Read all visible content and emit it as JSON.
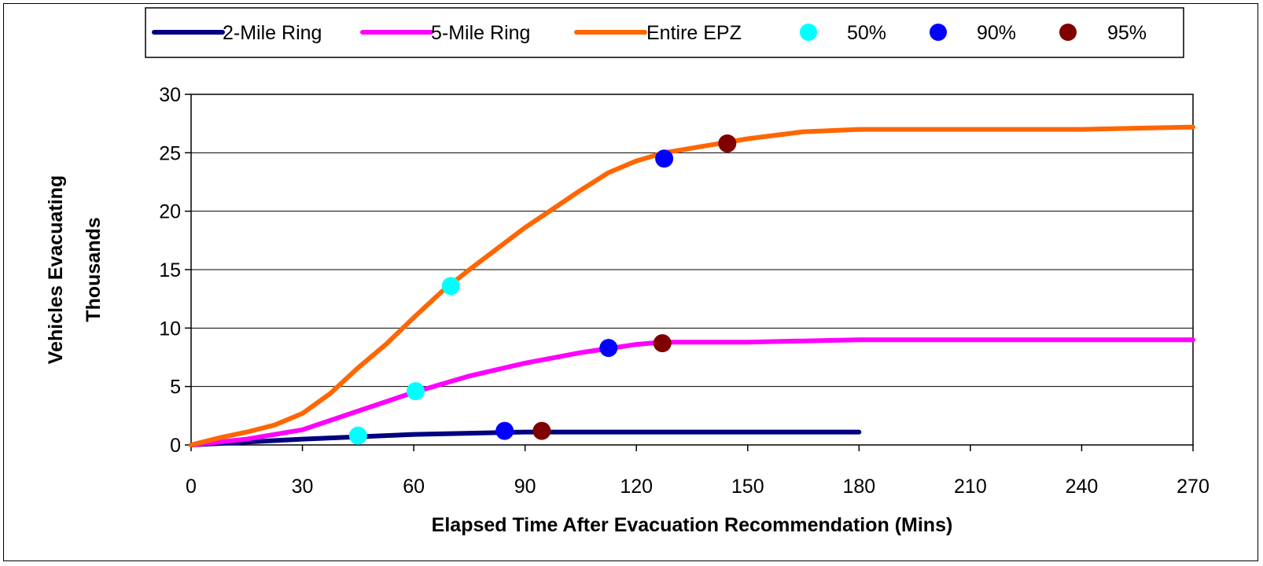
{
  "chart_data": {
    "type": "line",
    "xlabel": "Elapsed Time After Evacuation Recommendation (Mins)",
    "ylabel_line1": "Vehicles Evacuating",
    "ylabel_line2": "Thousands",
    "xlim": [
      0,
      270
    ],
    "ylim": [
      0,
      30
    ],
    "x_ticks": [
      "0",
      "30",
      "60",
      "90",
      "120",
      "150",
      "180",
      "210",
      "240",
      "270"
    ],
    "y_ticks": [
      "0",
      "5",
      "10",
      "15",
      "20",
      "25",
      "30"
    ],
    "grid": "horizontal",
    "legend_position": "top",
    "series": [
      {
        "name": "2-Mile Ring",
        "color": "#000080",
        "x": [
          0,
          15,
          30,
          45,
          60,
          75,
          90,
          105,
          120,
          135,
          150,
          165,
          180
        ],
        "y": [
          0,
          0.25,
          0.5,
          0.7,
          0.9,
          1.0,
          1.1,
          1.1,
          1.1,
          1.1,
          1.1,
          1.1,
          1.1
        ]
      },
      {
        "name": "5-Mile Ring",
        "color": "#ff00ff",
        "x": [
          0,
          15,
          30,
          45,
          60,
          75,
          90,
          105,
          120,
          127,
          150,
          180,
          210,
          240,
          270
        ],
        "y": [
          0,
          0.5,
          1.3,
          2.9,
          4.5,
          5.9,
          7.0,
          7.9,
          8.6,
          8.8,
          8.8,
          9.0,
          9.0,
          9.0,
          9.0
        ]
      },
      {
        "name": "Entire EPZ",
        "color": "#ff6600",
        "x": [
          0,
          7.5,
          15,
          22.5,
          30,
          37.5,
          45,
          52.5,
          60,
          67.5,
          75,
          82.5,
          90,
          97.5,
          105,
          112.5,
          120,
          127.5,
          135,
          142.5,
          150,
          165,
          180,
          210,
          240,
          270
        ],
        "y": [
          0,
          0.6,
          1.1,
          1.7,
          2.7,
          4.4,
          6.6,
          8.6,
          10.9,
          13.1,
          15.0,
          16.8,
          18.6,
          20.2,
          21.8,
          23.3,
          24.3,
          25.0,
          25.4,
          25.8,
          26.2,
          26.8,
          27.0,
          27.0,
          27.0,
          27.2
        ]
      }
    ],
    "markers": [
      {
        "name": "50%",
        "color": "#00ffff",
        "points": [
          {
            "x": 45,
            "y": 0.8
          },
          {
            "x": 60.5,
            "y": 4.6
          },
          {
            "x": 70,
            "y": 13.6
          }
        ]
      },
      {
        "name": "90%",
        "color": "#0000ff",
        "points": [
          {
            "x": 84.5,
            "y": 1.2
          },
          {
            "x": 112.5,
            "y": 8.3
          },
          {
            "x": 127.5,
            "y": 24.5
          }
        ]
      },
      {
        "name": "95%",
        "color": "#800000",
        "points": [
          {
            "x": 94.5,
            "y": 1.2
          },
          {
            "x": 127,
            "y": 8.7
          },
          {
            "x": 144.5,
            "y": 25.8
          }
        ]
      }
    ]
  }
}
